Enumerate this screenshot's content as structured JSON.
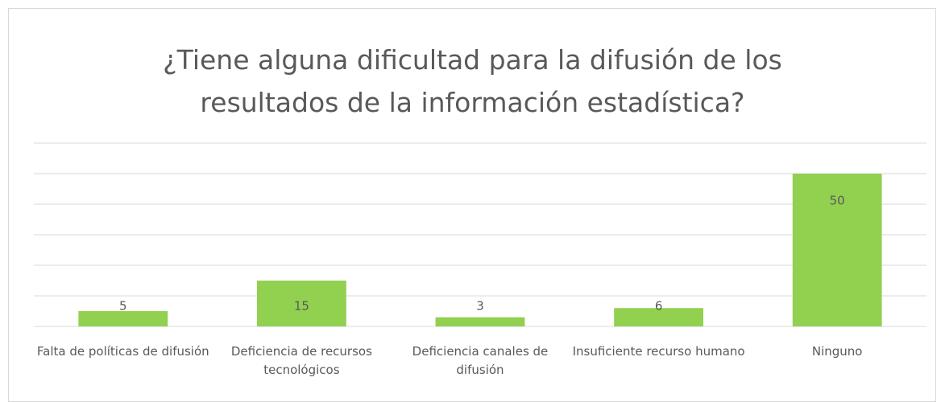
{
  "chart_data": {
    "type": "bar",
    "title": "¿Tiene alguna dificultad para la difusión de los resultados de la información estadística?",
    "categories": [
      "Falta de políticas de difusión",
      "Deficiencia de recursos tecnológicos",
      "Deficiencia canales de difusión",
      "Insuficiente recurso humano",
      "Ninguno"
    ],
    "values": [
      5,
      15,
      3,
      6,
      50
    ],
    "color": "#92d050",
    "ylim": [
      0,
      60
    ],
    "yticks": [
      0,
      10,
      20,
      30,
      40,
      50,
      60
    ],
    "grid": true
  }
}
